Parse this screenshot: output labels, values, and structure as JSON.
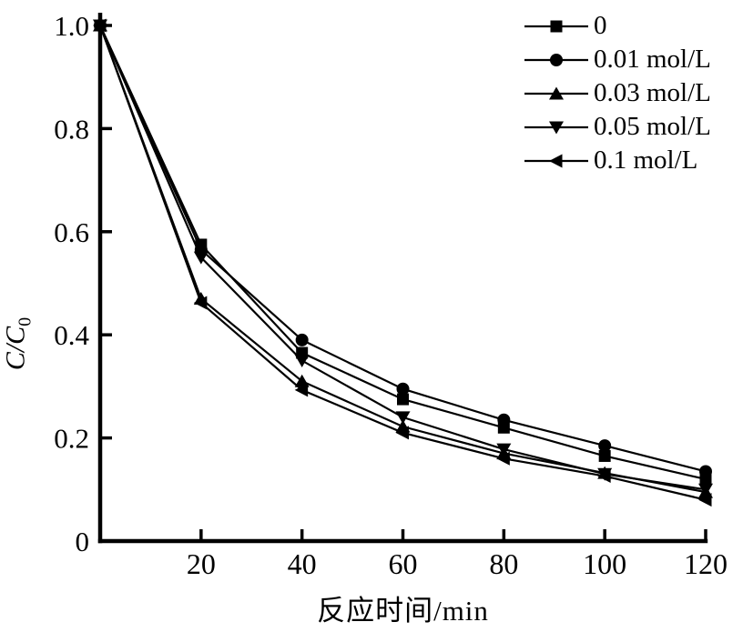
{
  "chart_data": {
    "type": "line",
    "title": "",
    "xlabel": "反应时间/min",
    "ylabel_main": "C/C",
    "ylabel_sub": "0",
    "x": [
      0,
      20,
      40,
      60,
      80,
      100,
      120
    ],
    "xticks": [
      20,
      40,
      60,
      80,
      100,
      120
    ],
    "yticks": [
      0,
      0.2,
      0.4,
      0.6,
      0.8,
      1.0
    ],
    "xlim": [
      0,
      120
    ],
    "ylim": [
      0,
      1.0
    ],
    "grid": false,
    "legend_position": "top-right",
    "line_color": "#000000",
    "background_color": "#ffffff",
    "series": [
      {
        "name": "0",
        "marker": "square",
        "values": [
          1.0,
          0.575,
          0.365,
          0.275,
          0.22,
          0.165,
          0.12
        ]
      },
      {
        "name": "0.01 mol/L",
        "marker": "circle",
        "values": [
          1.0,
          0.565,
          0.39,
          0.295,
          0.235,
          0.185,
          0.135
        ]
      },
      {
        "name": "0.03 mol/L",
        "marker": "triangle-up",
        "values": [
          1.0,
          0.47,
          0.31,
          0.222,
          0.17,
          0.132,
          0.095
        ]
      },
      {
        "name": "0.05 mol/L",
        "marker": "triangle-down",
        "values": [
          1.0,
          0.55,
          0.35,
          0.24,
          0.178,
          0.13,
          0.1
        ]
      },
      {
        "name": "0.1 mol/L",
        "marker": "triangle-left",
        "values": [
          1.0,
          0.462,
          0.293,
          0.21,
          0.16,
          0.126,
          0.08
        ]
      }
    ]
  }
}
